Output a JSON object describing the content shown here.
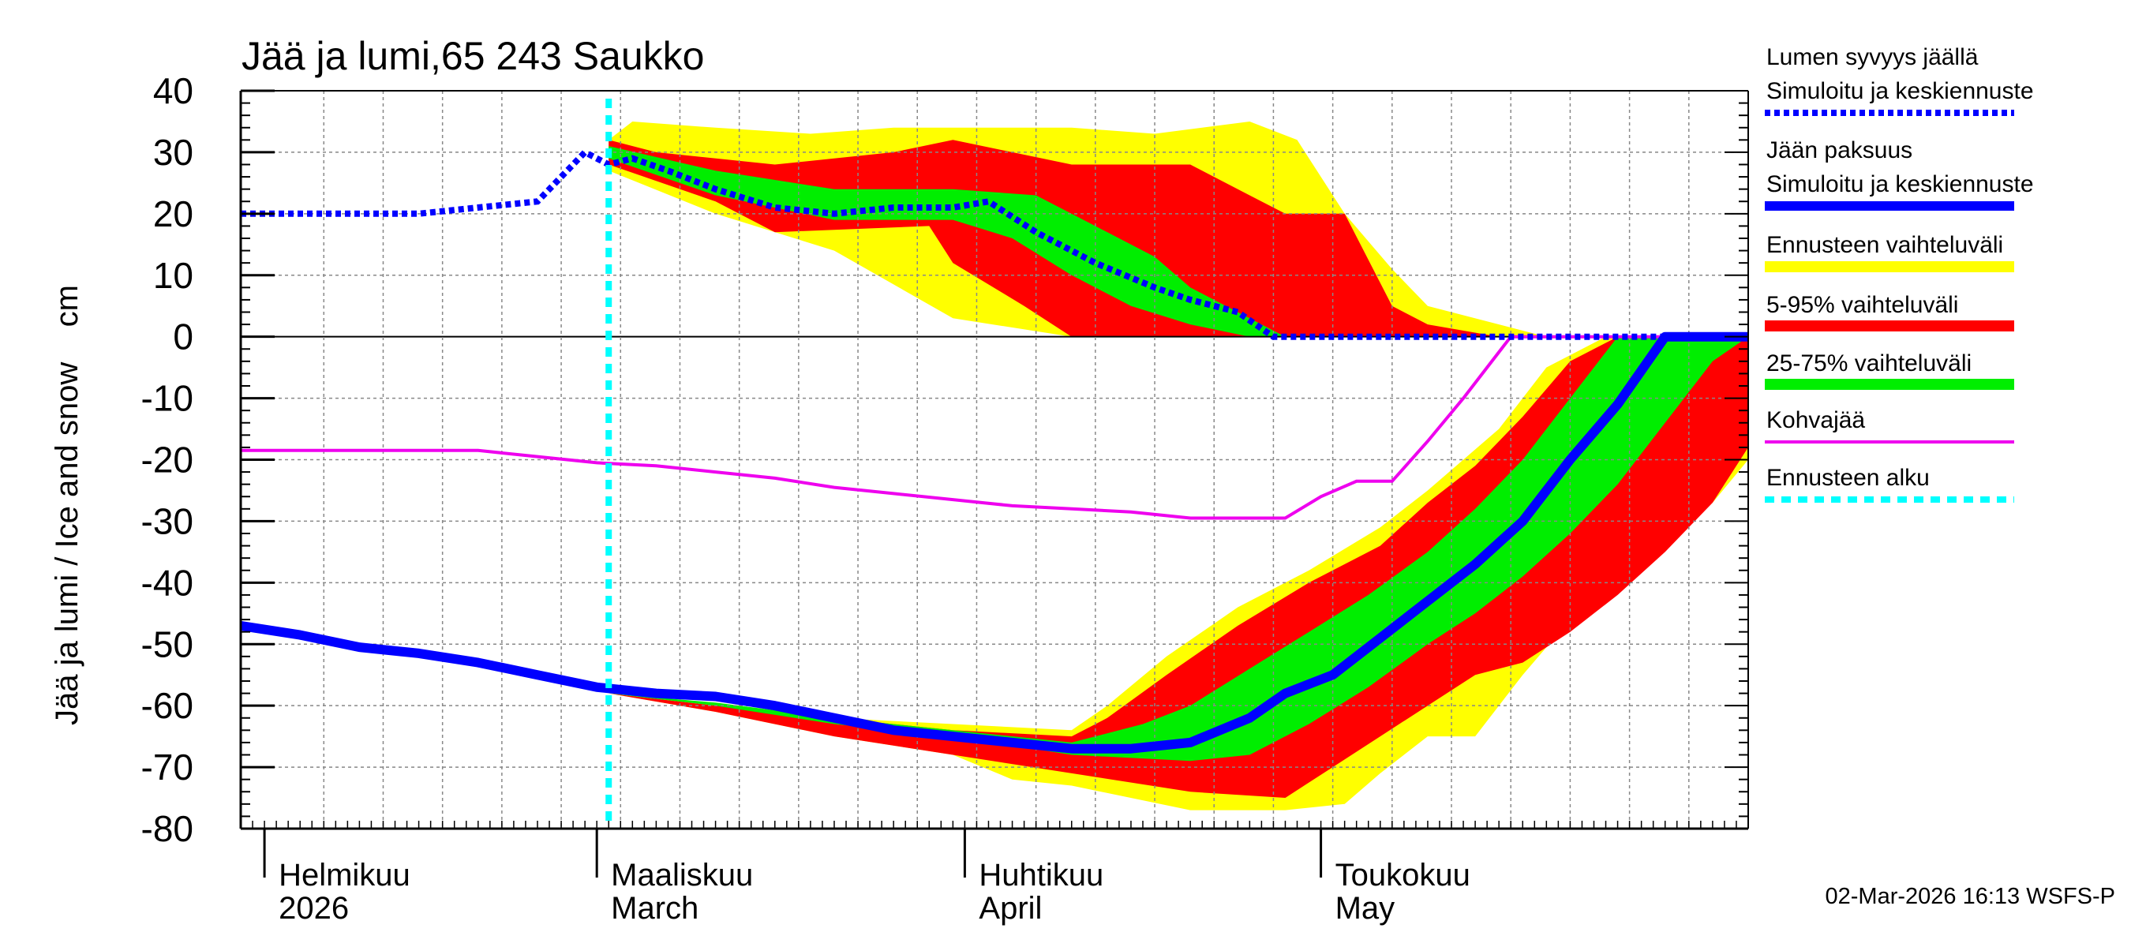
{
  "chart_data": {
    "type": "area",
    "title": "Jää ja lumi,65 243 Saukko",
    "ylabel": "Jää ja lumi / Ice and snow    cm",
    "xlabel": "",
    "ylim": [
      -80,
      40
    ],
    "yticks": [
      40,
      30,
      20,
      10,
      0,
      -10,
      -20,
      -30,
      -40,
      -50,
      -60,
      -70,
      -80
    ],
    "x_range_days": [
      0,
      127
    ],
    "x_unit": "days since 2026-01-30",
    "month_labels": [
      {
        "day": 2,
        "line1": "Helmikuu",
        "line2": "2026"
      },
      {
        "day": 30,
        "line1": "Maaliskuu",
        "line2": "March"
      },
      {
        "day": 61,
        "line1": "Huhtikuu",
        "line2": "April"
      },
      {
        "day": 91,
        "line1": "Toukokuu",
        "line2": "May"
      }
    ],
    "forecast_start_day": 31,
    "legend": [
      {
        "label": "Lumen syvyys jäällä",
        "color": "",
        "style": "none"
      },
      {
        "label": "Simuloitu ja keskiennuste",
        "color": "#0000ff",
        "style": "dotted"
      },
      {
        "label": "Jään paksuus",
        "color": "",
        "style": "none"
      },
      {
        "label": "Simuloitu ja keskiennuste",
        "color": "#0000ff",
        "style": "solid"
      },
      {
        "label": "Ennusteen vaihteluväli",
        "color": "#ffff00",
        "style": "band"
      },
      {
        "label": "5-95% vaihteluväli",
        "color": "#ff0000",
        "style": "band"
      },
      {
        "label": "25-75% vaihteluväli",
        "color": "#00ee00",
        "style": "band"
      },
      {
        "label": "Kohvajää",
        "color": "#ee00ee",
        "style": "line"
      },
      {
        "label": "Ennusteen alku",
        "color": "#00ffff",
        "style": "dashed"
      }
    ],
    "series": [
      {
        "name": "Lumen syvyys jäällä – simuloitu ja keskiennuste",
        "color": "#0000ff",
        "x": [
          0,
          5,
          10,
          15,
          20,
          25,
          28,
          29,
          31,
          33,
          36,
          40,
          45,
          50,
          55,
          60,
          63,
          67,
          72,
          77,
          80,
          84,
          87,
          92,
          100,
          110,
          127
        ],
        "y": [
          20,
          20,
          20,
          20,
          21,
          22,
          28,
          30,
          28,
          29,
          27,
          24,
          21,
          20,
          21,
          21,
          22,
          17,
          12,
          8,
          6,
          4,
          0,
          0,
          0,
          0,
          0
        ]
      },
      {
        "name": "Snow – ennusteen vaihteluväli max",
        "x": [
          31,
          33,
          40,
          48,
          55,
          63,
          70,
          77,
          85,
          89,
          93,
          97,
          100,
          106,
          110,
          127
        ],
        "y": [
          32,
          35,
          34,
          33,
          34,
          34,
          34,
          33,
          35,
          32,
          20,
          11,
          5,
          2,
          0,
          0
        ]
      },
      {
        "name": "Snow – ennusteen vaihteluväli min",
        "x": [
          31,
          40,
          50,
          60,
          70,
          80,
          90,
          127
        ],
        "y": [
          27,
          20,
          14,
          3,
          0,
          0,
          0,
          0
        ]
      },
      {
        "name": "Snow – 5-95% max",
        "x": [
          31,
          35,
          45,
          55,
          60,
          70,
          80,
          85,
          88,
          93,
          97,
          100,
          106,
          127
        ],
        "y": [
          32,
          30,
          28,
          30,
          32,
          28,
          28,
          23,
          20,
          20,
          5,
          2,
          0,
          0
        ]
      },
      {
        "name": "Snow – 5-95% min",
        "x": [
          31,
          40,
          45,
          58,
          60,
          66,
          70,
          75,
          127
        ],
        "y": [
          28,
          22,
          17,
          18,
          12,
          5,
          0,
          0,
          0
        ]
      },
      {
        "name": "Snow – 25-75% max",
        "x": [
          31,
          40,
          50,
          60,
          67,
          72,
          77,
          80,
          84,
          88,
          127
        ],
        "y": [
          31,
          27,
          24,
          24,
          23,
          18,
          13,
          8,
          4,
          0,
          0
        ]
      },
      {
        "name": "Snow – 25-75% min",
        "x": [
          31,
          40,
          50,
          60,
          65,
          70,
          75,
          80,
          85,
          127
        ],
        "y": [
          29,
          23,
          19,
          19,
          16,
          10,
          5,
          2,
          0,
          0
        ]
      },
      {
        "name": "Jään paksuus – simuloitu ja keskiennuste",
        "color": "#0000ff",
        "x": [
          0,
          5,
          10,
          15,
          20,
          25,
          30,
          35,
          40,
          45,
          50,
          55,
          60,
          65,
          70,
          75,
          80,
          85,
          88,
          92,
          96,
          100,
          104,
          108,
          112,
          116,
          120,
          124,
          127
        ],
        "y": [
          -47,
          -48.5,
          -50.5,
          -51.5,
          -53,
          -55,
          -57,
          -58,
          -58.5,
          -60,
          -62,
          -64,
          -65,
          -66,
          -67,
          -67,
          -66,
          -62,
          -58,
          -55,
          -49,
          -43,
          -37,
          -30,
          -20,
          -11,
          0,
          0,
          0
        ]
      },
      {
        "name": "Ice – ennusteen vaihteluväli upper",
        "x": [
          31,
          40,
          50,
          60,
          70,
          73,
          78,
          84,
          90,
          96,
          100,
          106,
          110,
          115,
          127
        ],
        "y": [
          -58,
          -60,
          -62,
          -63,
          -64,
          -60,
          -52,
          -44,
          -38,
          -31,
          -25,
          -15,
          -5,
          0,
          0
        ]
      },
      {
        "name": "Ice – ennusteen vaihteluväli lower",
        "x": [
          31,
          40,
          50,
          60,
          65,
          70,
          80,
          88,
          93,
          96,
          100,
          104,
          108,
          112,
          116,
          120,
          124,
          127
        ],
        "y": [
          -58,
          -61,
          -65,
          -68,
          -72,
          -73,
          -77,
          -77,
          -76,
          -71,
          -65,
          -65,
          -55,
          -46,
          -40,
          -34,
          -27,
          -20
        ]
      },
      {
        "name": "Ice – 5-95% upper",
        "x": [
          31,
          40,
          50,
          60,
          70,
          73,
          78,
          84,
          90,
          96,
          100,
          104,
          108,
          112,
          116,
          127
        ],
        "y": [
          -58,
          -60,
          -62,
          -64,
          -65,
          -62,
          -55,
          -47,
          -40,
          -34,
          -27,
          -21,
          -13,
          -4,
          0,
          0
        ]
      },
      {
        "name": "Ice – 5-95% lower",
        "x": [
          31,
          40,
          50,
          60,
          70,
          80,
          88,
          92,
          96,
          100,
          104,
          108,
          112,
          116,
          120,
          124,
          127
        ],
        "y": [
          -58,
          -61,
          -65,
          -68,
          -71,
          -74,
          -75,
          -70,
          -65,
          -60,
          -55,
          -53,
          -48,
          -42,
          -35,
          -27,
          -18
        ]
      },
      {
        "name": "Ice – 25-75% upper",
        "x": [
          31,
          40,
          50,
          60,
          70,
          76,
          80,
          85,
          90,
          95,
          100,
          104,
          108,
          112,
          116,
          127
        ],
        "y": [
          -58,
          -59.5,
          -62,
          -64,
          -66,
          -63,
          -60,
          -54,
          -48,
          -42,
          -35,
          -28,
          -20,
          -10,
          0,
          0
        ]
      },
      {
        "name": "Ice – 25-75% lower",
        "x": [
          31,
          40,
          50,
          60,
          70,
          80,
          85,
          90,
          95,
          100,
          104,
          108,
          112,
          116,
          120,
          124,
          127
        ],
        "y": [
          -58,
          -60,
          -63,
          -65,
          -68,
          -69,
          -68,
          -63,
          -57,
          -50,
          -45,
          -39,
          -32,
          -24,
          -14,
          -4,
          0
        ]
      },
      {
        "name": "Kohvajää",
        "color": "#ee00ee",
        "x": [
          0,
          10,
          20,
          25,
          30,
          35,
          40,
          45,
          50,
          55,
          60,
          65,
          70,
          75,
          80,
          85,
          88,
          91,
          94,
          97,
          100,
          103,
          107,
          110,
          127
        ],
        "y": [
          -18.5,
          -18.5,
          -18.5,
          -19.5,
          -20.5,
          -21,
          -22,
          -23,
          -24.5,
          -25.5,
          -26.5,
          -27.5,
          -28,
          -28.5,
          -29.5,
          -29.5,
          -29.5,
          -26,
          -23.5,
          -23.5,
          -17,
          -10,
          0,
          0,
          0
        ]
      }
    ]
  },
  "footer": "02-Mar-2026 16:13 WSFS-P"
}
